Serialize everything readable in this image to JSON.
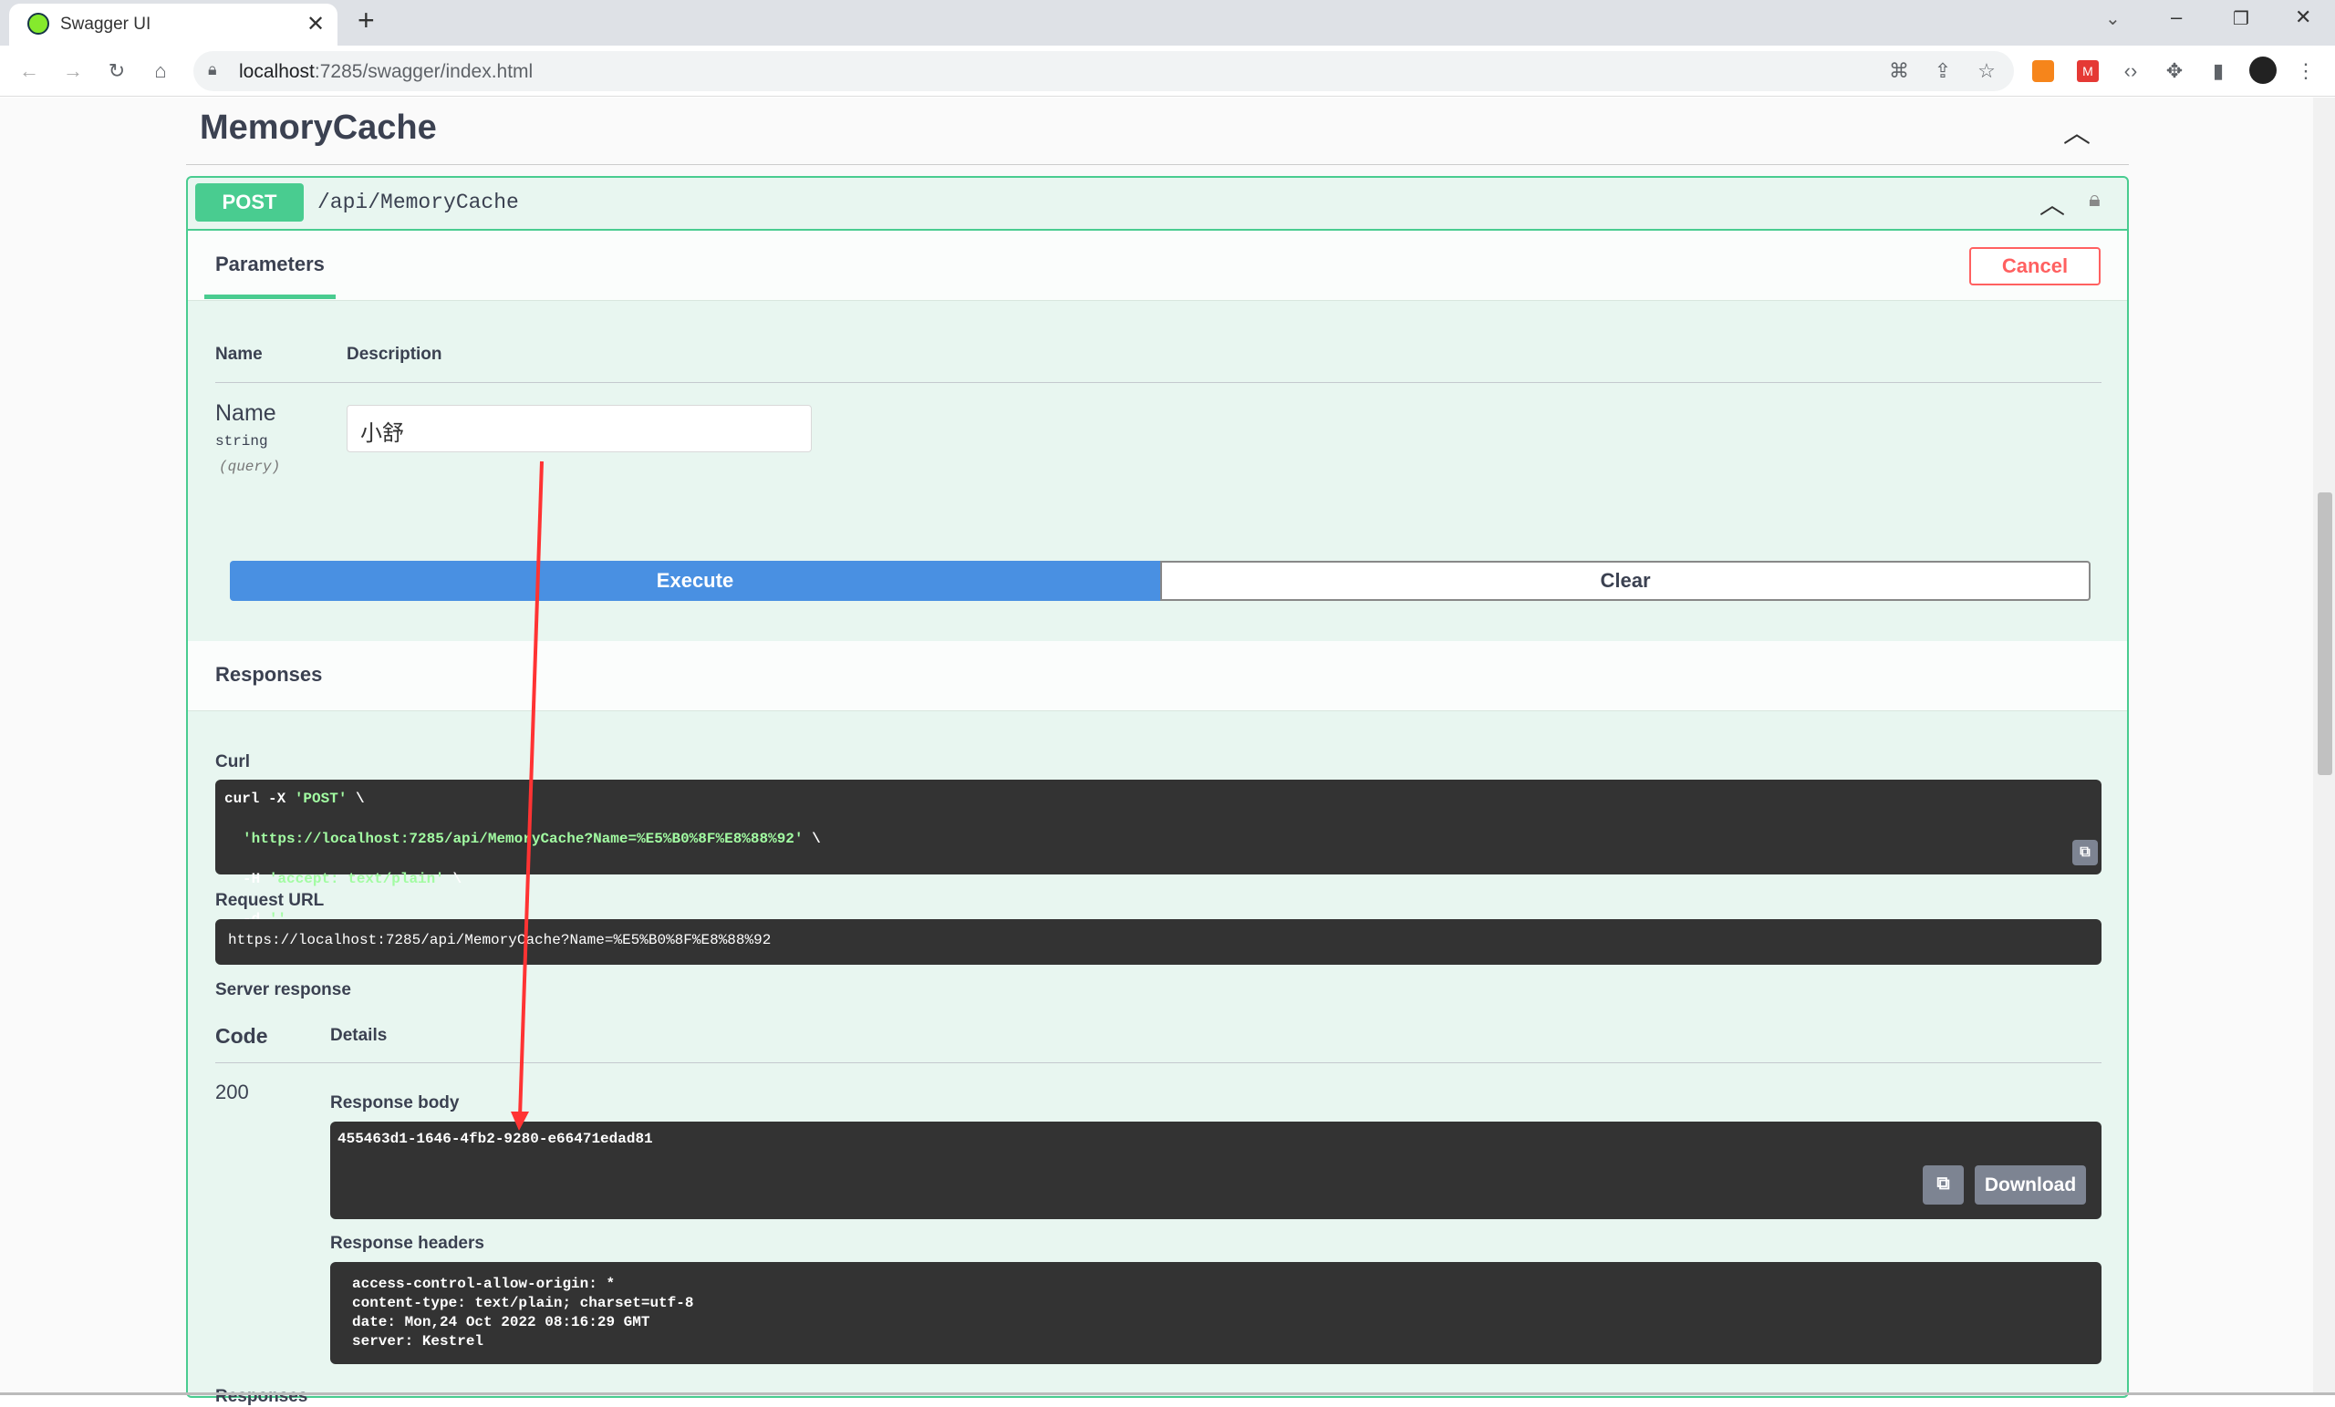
{
  "browser": {
    "tab_title": "Swagger UI",
    "url": "localhost:7285/swagger/index.html",
    "url_host": "localhost",
    "url_rest": ":7285/swagger/index.html"
  },
  "section": {
    "title": "MemoryCache"
  },
  "operation": {
    "method": "POST",
    "path": "/api/MemoryCache",
    "method_color": "#49cc90"
  },
  "params": {
    "tab": "Parameters",
    "cancel": "Cancel",
    "col_name": "Name",
    "col_desc": "Description",
    "param_name": "Name",
    "param_type": "string",
    "param_in": "(query)",
    "param_value": "小舒"
  },
  "actions": {
    "execute": "Execute",
    "clear": "Clear"
  },
  "responses": {
    "title": "Responses",
    "curl_label": "Curl",
    "curl": {
      "l1a": "curl -X ",
      "l1b": "'POST'",
      "l1c": " \\",
      "l2a": "'https://localhost:7285/api/MemoryCache?Name=%E5%B0%8F%E8%88%92'",
      "l2b": " \\",
      "l3a": "-H ",
      "l3b": "'accept: text/plain'",
      "l3c": " \\",
      "l4a": "-d ",
      "l4b": "''"
    },
    "request_url_label": "Request URL",
    "request_url": "https://localhost:7285/api/MemoryCache?Name=%E5%B0%8F%E8%88%92",
    "server_response": "Server response",
    "code_header": "Code",
    "details_header": "Details",
    "code": "200",
    "body_label": "Response body",
    "body": "455463d1-1646-4fb2-9280-e66471edad81",
    "download": "Download",
    "headers_label": "Response headers",
    "headers": [
      "access-control-allow-origin: *",
      "content-type: text/plain; charset=utf-8",
      "date: Mon,24 Oct 2022 08:16:29 GMT",
      "server: Kestrel"
    ],
    "bottom_label": "Responses"
  }
}
